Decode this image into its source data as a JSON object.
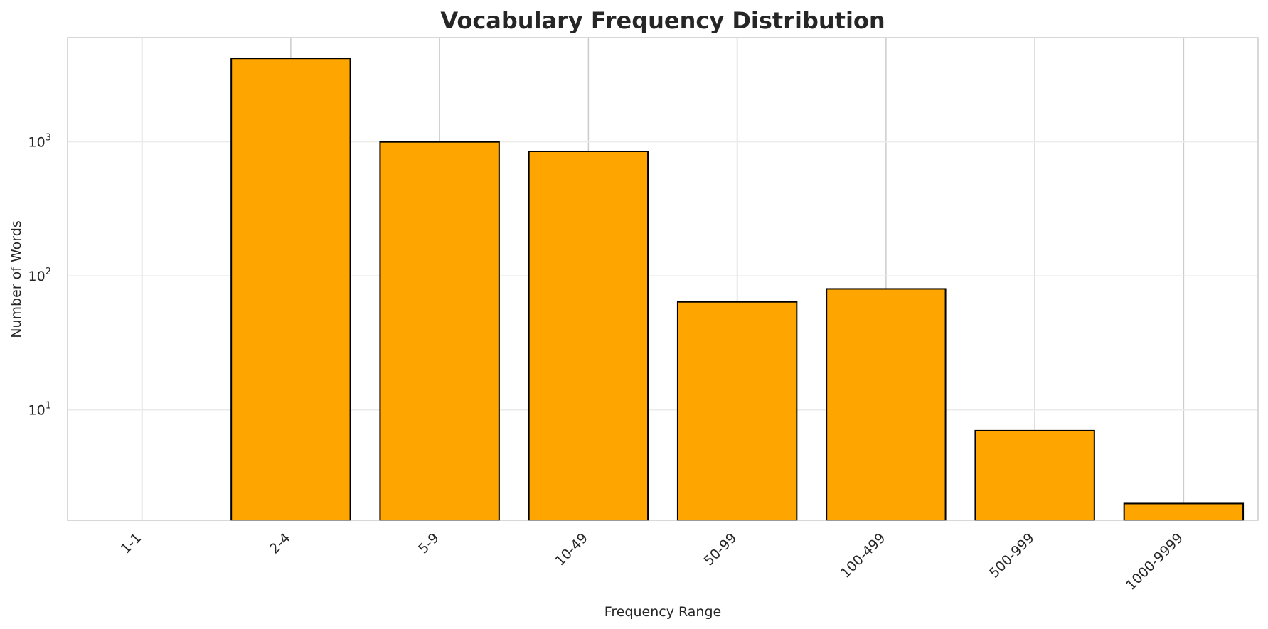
{
  "chart_data": {
    "type": "bar",
    "title": "Vocabulary Frequency Distribution",
    "xlabel": "Frequency Range",
    "ylabel": "Number of Words",
    "yscale": "log",
    "ylim": [
      1.5,
      6000
    ],
    "categories": [
      "1-1",
      "2-4",
      "5-9",
      "10-49",
      "50-99",
      "100-499",
      "500-999",
      "1000-9999"
    ],
    "values": [
      0,
      4200,
      1000,
      850,
      64,
      80,
      7,
      2
    ],
    "yticks": [
      {
        "base": "10",
        "exp": "1",
        "value": 10
      },
      {
        "base": "10",
        "exp": "2",
        "value": 100
      },
      {
        "base": "10",
        "exp": "3",
        "value": 1000
      }
    ],
    "bar_color": "#ffa500",
    "edge_color": "#000000",
    "grid": true,
    "x_tick_rotation": 45
  }
}
